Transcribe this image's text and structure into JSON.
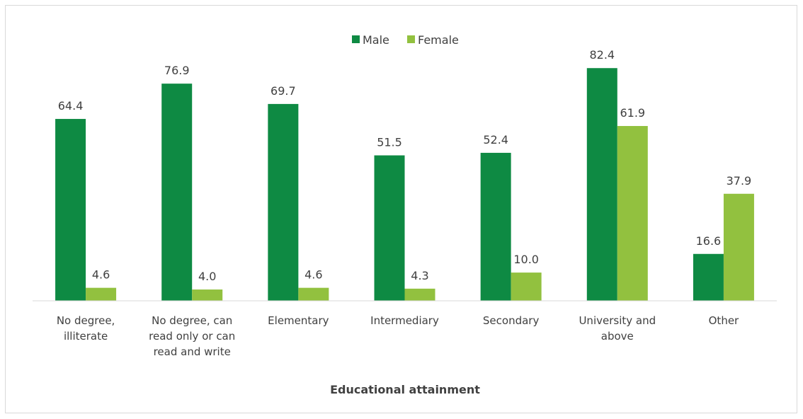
{
  "chart_data": {
    "type": "bar",
    "categories": [
      [
        "No degree,",
        "illiterate"
      ],
      [
        "No degree, can",
        "read only or can",
        "read and write"
      ],
      [
        "Elementary"
      ],
      [
        "Intermediary"
      ],
      [
        "Secondary"
      ],
      [
        "University and",
        "above"
      ],
      [
        "Other"
      ]
    ],
    "series": [
      {
        "name": "Male",
        "color": "#0e8a43",
        "values": [
          64.4,
          76.9,
          69.7,
          51.5,
          52.4,
          82.4,
          16.6
        ]
      },
      {
        "name": "Female",
        "color": "#92c13f",
        "values": [
          4.6,
          4.0,
          4.6,
          4.3,
          10.0,
          61.9,
          37.9
        ]
      }
    ],
    "xlabel": "Educational attainment",
    "ylim": [
      0,
      100
    ],
    "legend_position": "top-center",
    "grid": false
  }
}
